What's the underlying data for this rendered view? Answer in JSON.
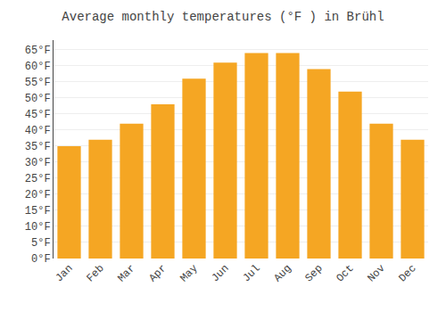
{
  "chart_data": {
    "type": "bar",
    "title": "Average monthly temperatures (°F ) in Brühl",
    "categories": [
      "Jan",
      "Feb",
      "Mar",
      "Apr",
      "May",
      "Jun",
      "Jul",
      "Aug",
      "Sep",
      "Oct",
      "Nov",
      "Dec"
    ],
    "values": [
      35,
      37,
      42,
      48,
      56,
      61,
      64,
      64,
      59,
      52,
      42,
      37
    ],
    "color": "#F5A623",
    "ylim": [
      0,
      68
    ],
    "yticks": [
      {
        "value": 0,
        "label": "0°F"
      },
      {
        "value": 5,
        "label": "5°F"
      },
      {
        "value": 10,
        "label": "10°F"
      },
      {
        "value": 15,
        "label": "15°F"
      },
      {
        "value": 20,
        "label": "20°F"
      },
      {
        "value": 25,
        "label": "25°F"
      },
      {
        "value": 30,
        "label": "30°F"
      },
      {
        "value": 35,
        "label": "35°F"
      },
      {
        "value": 40,
        "label": "40°F"
      },
      {
        "value": 45,
        "label": "45°F"
      },
      {
        "value": 50,
        "label": "50°F"
      },
      {
        "value": 55,
        "label": "55°F"
      },
      {
        "value": 60,
        "label": "60°F"
      },
      {
        "value": 65,
        "label": "65°F"
      }
    ],
    "grid": true
  }
}
